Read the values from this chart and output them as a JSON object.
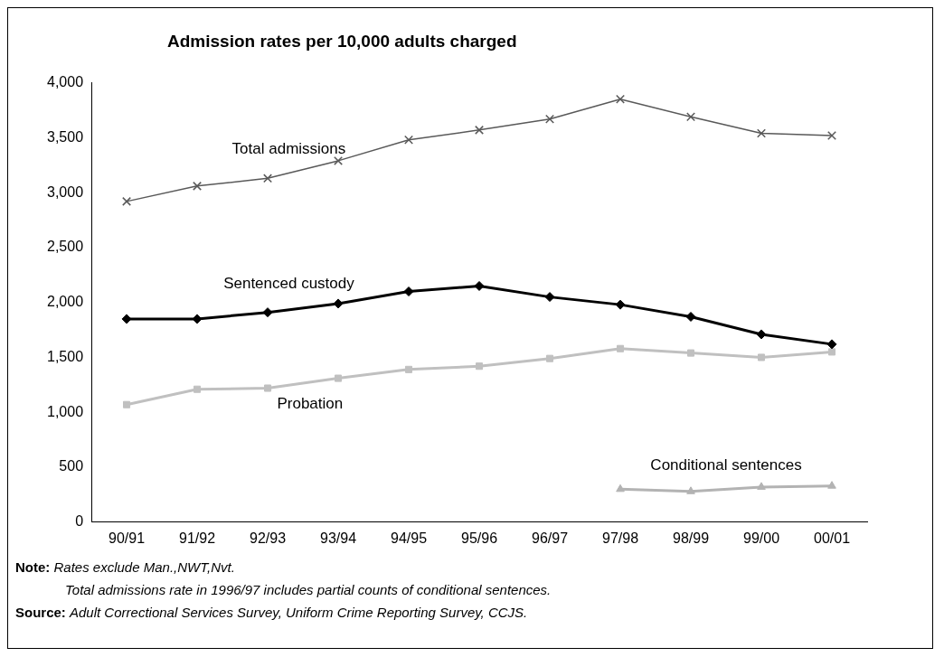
{
  "chart_data": {
    "type": "line",
    "title": "Admission rates per 10,000 adults charged",
    "categories": [
      "90/91",
      "91/92",
      "92/93",
      "93/94",
      "94/95",
      "95/96",
      "96/97",
      "97/98",
      "98/99",
      "99/00",
      "00/01"
    ],
    "series": [
      {
        "name": "Total admissions",
        "color": "#595959",
        "marker": "cross",
        "values": [
          2920,
          3060,
          3130,
          3290,
          3480,
          3570,
          3670,
          3850,
          3690,
          3540,
          3520
        ]
      },
      {
        "name": "Sentenced custody",
        "color": "#000000",
        "marker": "diamond",
        "values": [
          1850,
          1850,
          1910,
          1990,
          2100,
          2150,
          2050,
          1980,
          1870,
          1710,
          1620
        ]
      },
      {
        "name": "Probation",
        "color": "#c0c0c0",
        "marker": "square",
        "values": [
          1070,
          1210,
          1220,
          1310,
          1390,
          1420,
          1490,
          1580,
          1540,
          1500,
          1550
        ]
      },
      {
        "name": "Conditional sentences",
        "color": "#b3b3b3",
        "marker": "triangle",
        "values": [
          null,
          null,
          null,
          null,
          null,
          null,
          null,
          300,
          280,
          320,
          330
        ]
      }
    ],
    "ylim": [
      0,
      4000
    ],
    "yticks": [
      0,
      500,
      {
        "value": 1000,
        "label": "1,000"
      },
      {
        "value": 1500,
        "label": "1,500"
      },
      {
        "value": 2000,
        "label": "2,000"
      },
      {
        "value": 2500,
        "label": "2,500"
      },
      {
        "value": 3000,
        "label": "3,000"
      },
      {
        "value": 3500,
        "label": "3,500"
      },
      {
        "value": 4000,
        "label": "4,000"
      }
    ],
    "grid": false,
    "legend": false,
    "annotations": [
      "Note: Rates exclude Man.,NWT,Nvt.",
      "Total admissions rate in 1996/97 includes partial counts of conditional sentences.",
      "Source: Adult Correctional Services Survey, Uniform Crime Reporting Survey, CCJS."
    ]
  }
}
